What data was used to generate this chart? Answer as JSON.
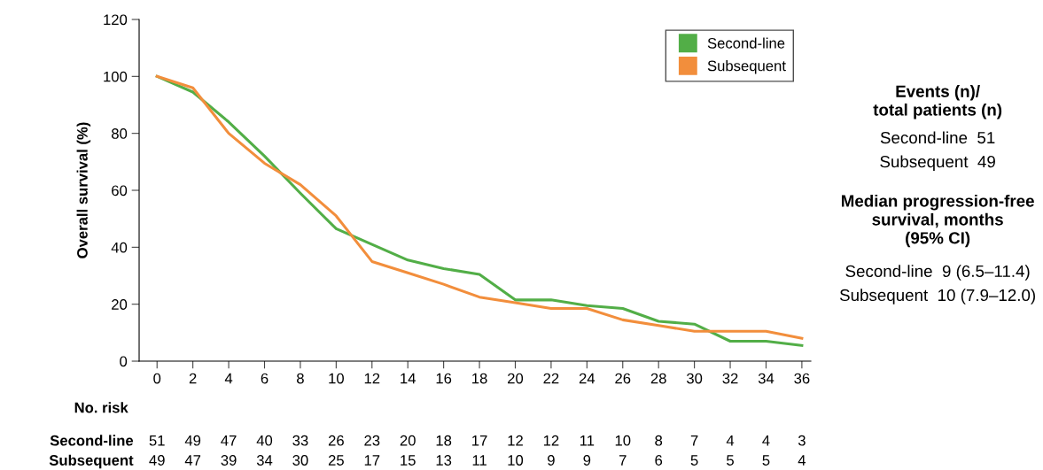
{
  "chart_data": {
    "type": "line",
    "ylabel": "Overall survival (%)",
    "x": [
      0,
      2,
      4,
      6,
      8,
      10,
      12,
      14,
      16,
      18,
      20,
      22,
      24,
      26,
      28,
      30,
      32,
      34,
      36
    ],
    "series": [
      {
        "name": "Second-line",
        "color": "#52ae47",
        "values": [
          100,
          94.5,
          84,
          72,
          59,
          46.5,
          41,
          35.5,
          32.5,
          30.5,
          21.5,
          21.5,
          19.5,
          18.5,
          14,
          13,
          7,
          7,
          5.5
        ]
      },
      {
        "name": "Subsequent",
        "color": "#f28e3c",
        "values": [
          100,
          96,
          80,
          69.5,
          62,
          51,
          35,
          31,
          27,
          22.5,
          20.5,
          18.5,
          18.5,
          14.5,
          12.5,
          10.5,
          10.5,
          10.5,
          8
        ]
      }
    ],
    "xlim": [
      -1,
      36.5
    ],
    "ylim": [
      0,
      120
    ],
    "xticks": [
      0,
      2,
      4,
      6,
      8,
      10,
      12,
      14,
      16,
      18,
      20,
      22,
      24,
      26,
      28,
      30,
      32,
      34,
      36
    ],
    "yticks": [
      0,
      20,
      40,
      60,
      80,
      100,
      120
    ],
    "grid": false,
    "legend": "top right",
    "marker": "none",
    "line_style": "solid",
    "annotations": [
      "Events (n)/\ntotal patients (n)",
      "Second-line  51",
      "Subsequent  49",
      "Median progression-free\nsurvival, months\n(95% CI)",
      "Second-line  9 (6.5–11.4)",
      "Subsequent  10 (7.9–12.0)",
      "No. risk",
      "Second-line",
      "Subsequent",
      "51",
      "49",
      "47",
      "40",
      "33",
      "26",
      "23",
      "20",
      "18",
      "17",
      "12",
      "12",
      "11",
      "10",
      "8",
      "7",
      "4",
      "4",
      "3",
      "49",
      "47",
      "39",
      "34",
      "30",
      "25",
      "17",
      "15",
      "13",
      "11",
      "10",
      "9",
      "9",
      "7",
      "6",
      "5",
      "5",
      "5",
      "4"
    ]
  }
}
